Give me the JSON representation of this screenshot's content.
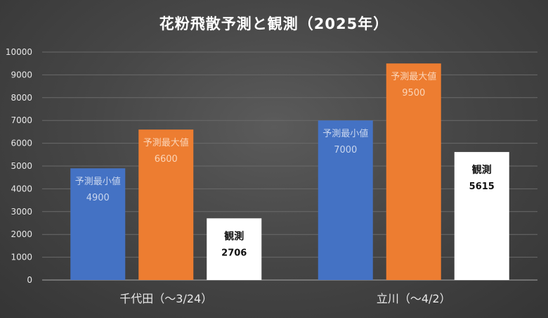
{
  "chart_data": {
    "type": "bar",
    "title": "花粉飛散予測と観測（2025年）",
    "categories": [
      "千代田（〜3/24）",
      "立川（〜4/2）"
    ],
    "series": [
      {
        "label": "予測最小値",
        "values": [
          4900,
          7000
        ],
        "color": "#4472c4",
        "label_color": "#c9d6ee",
        "bold": false
      },
      {
        "label": "予測最大値",
        "values": [
          6600,
          9500
        ],
        "color": "#ed7d31",
        "label_color": "#fbd5b8",
        "bold": false
      },
      {
        "label": "観測",
        "values": [
          2706,
          5615
        ],
        "color": "#ffffff",
        "label_color": "#111111",
        "bold": true
      }
    ],
    "ylim": [
      0,
      10000
    ],
    "yticks": [
      "0",
      "1000",
      "2000",
      "3000",
      "4000",
      "5000",
      "6000",
      "7000",
      "8000",
      "9000",
      "10000"
    ],
    "grid": true
  }
}
